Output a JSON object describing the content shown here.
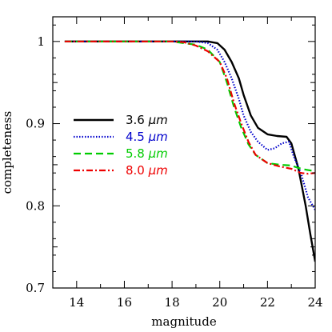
{
  "chart_data": {
    "type": "line",
    "title": "",
    "xlabel": "magnitude",
    "ylabel": "completeness",
    "xlim": [
      13,
      24
    ],
    "ylim": [
      0.7,
      1.03
    ],
    "x_ticks": [
      14,
      16,
      18,
      20,
      22,
      24
    ],
    "x_tick_labels": [
      "14",
      "16",
      "18",
      "20",
      "22",
      "24"
    ],
    "y_ticks": [
      0.7,
      0.8,
      0.9,
      1.0
    ],
    "y_tick_labels": [
      "0.7",
      "0.8",
      "0.9",
      "1"
    ],
    "grid": false,
    "legend_position": "left-middle",
    "series": [
      {
        "name": "3.6 μm",
        "color": "#000000",
        "style": "solid",
        "x": [
          13.5,
          19.0,
          19.5,
          19.9,
          20.2,
          20.5,
          20.8,
          21.0,
          21.3,
          21.6,
          22.0,
          22.4,
          22.8,
          23.0,
          23.3,
          23.6,
          23.8,
          24.0
        ],
        "y": [
          1.0,
          1.0,
          1.0,
          0.998,
          0.99,
          0.975,
          0.955,
          0.935,
          0.91,
          0.895,
          0.887,
          0.885,
          0.884,
          0.876,
          0.845,
          0.8,
          0.765,
          0.732
        ]
      },
      {
        "name": "4.5 μm",
        "color": "#0000cc",
        "style": "dotted",
        "x": [
          13.5,
          19.0,
          19.5,
          19.9,
          20.2,
          20.5,
          20.8,
          21.0,
          21.3,
          21.6,
          22.0,
          22.3,
          22.6,
          22.9,
          23.1,
          23.4,
          23.7,
          24.0
        ],
        "y": [
          1.0,
          1.0,
          0.998,
          0.99,
          0.975,
          0.955,
          0.93,
          0.91,
          0.89,
          0.878,
          0.868,
          0.87,
          0.876,
          0.878,
          0.86,
          0.84,
          0.81,
          0.795
        ]
      },
      {
        "name": "5.8 μm",
        "color": "#00cc00",
        "style": "dashed",
        "x": [
          13.5,
          18.0,
          18.5,
          19.0,
          19.5,
          20.0,
          20.3,
          20.6,
          20.9,
          21.2,
          21.5,
          22.0,
          22.5,
          23.0,
          23.3,
          23.6,
          23.8,
          24.0
        ],
        "y": [
          1.0,
          1.0,
          0.998,
          0.996,
          0.99,
          0.975,
          0.95,
          0.92,
          0.895,
          0.875,
          0.862,
          0.852,
          0.85,
          0.849,
          0.846,
          0.844,
          0.843,
          0.843
        ]
      },
      {
        "name": "8.0 μm",
        "color": "#ee0000",
        "style": "dashdot",
        "x": [
          13.5,
          18.0,
          18.5,
          19.0,
          19.5,
          20.0,
          20.3,
          20.6,
          20.9,
          21.2,
          21.5,
          22.0,
          22.5,
          23.0,
          23.4,
          23.7,
          24.0
        ],
        "y": [
          1.0,
          1.0,
          0.999,
          0.995,
          0.988,
          0.975,
          0.955,
          0.925,
          0.9,
          0.878,
          0.862,
          0.852,
          0.848,
          0.845,
          0.84,
          0.839,
          0.84
        ]
      }
    ]
  }
}
